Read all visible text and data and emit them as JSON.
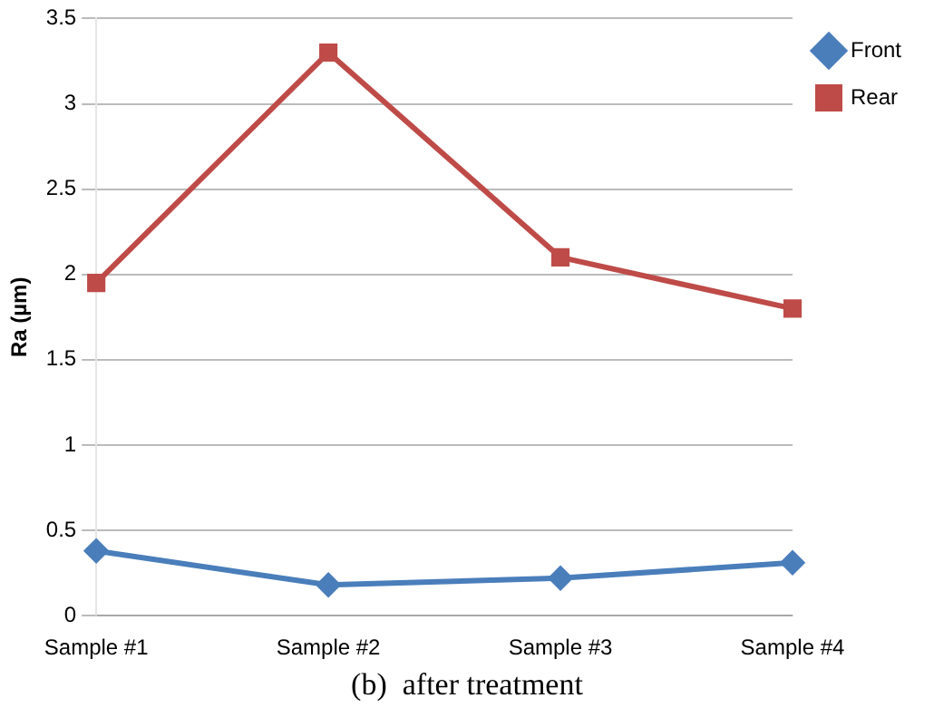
{
  "chart_data": {
    "type": "line",
    "ylabel": "Ra (µm)",
    "categories": [
      "Sample #1",
      "Sample #2",
      "Sample #3",
      "Sample #4"
    ],
    "series": [
      {
        "name": "Front",
        "color": "#4a7ebb",
        "marker": "diamond",
        "values": [
          0.38,
          0.18,
          0.22,
          0.31
        ]
      },
      {
        "name": "Rear",
        "color": "#be4b48",
        "marker": "square",
        "values": [
          1.95,
          3.3,
          2.1,
          1.8
        ]
      }
    ],
    "ylim": [
      0,
      3.5
    ],
    "yticks": [
      0,
      0.5,
      1,
      1.5,
      2,
      2.5,
      3,
      3.5
    ],
    "grid": "y",
    "legend": "top right",
    "annotations": [
      "(b)  after treatment"
    ]
  }
}
